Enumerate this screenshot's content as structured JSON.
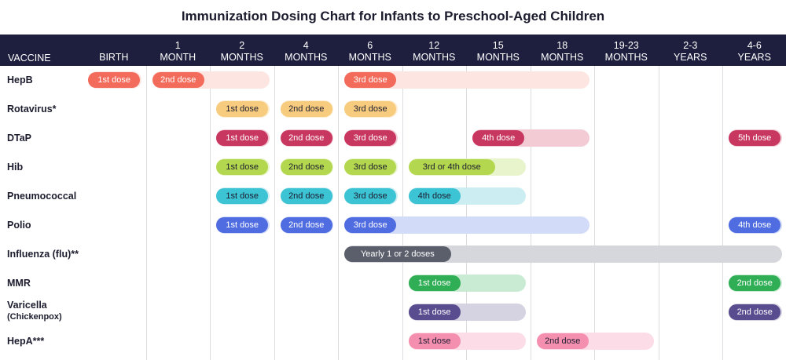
{
  "chart_data": {
    "type": "table",
    "title": "Immunization Dosing Chart for Infants to Preschool-Aged Children",
    "columns": [
      {
        "label": "BIRTH",
        "sub": ""
      },
      {
        "label": "1",
        "sub": "MONTH"
      },
      {
        "label": "2",
        "sub": "MONTHS"
      },
      {
        "label": "4",
        "sub": "MONTHS"
      },
      {
        "label": "6",
        "sub": "MONTHS"
      },
      {
        "label": "12",
        "sub": "MONTHS"
      },
      {
        "label": "15",
        "sub": "MONTHS"
      },
      {
        "label": "18",
        "sub": "MONTHS"
      },
      {
        "label": "19-23",
        "sub": "MONTHS"
      },
      {
        "label": "2-3",
        "sub": "YEARS"
      },
      {
        "label": "4-6",
        "sub": "YEARS"
      }
    ],
    "vaccine_header": "VACCINE",
    "vaccines": [
      {
        "name": "HepB",
        "sub": "",
        "color": "#f26b5b",
        "light": "#fde6e2",
        "doses": [
          {
            "label": "1st dose",
            "start": 0,
            "end": 0
          },
          {
            "label": "2nd dose",
            "start": 1,
            "end": 2
          },
          {
            "label": "3rd dose",
            "start": 4,
            "end": 7
          }
        ]
      },
      {
        "name": "Rotavirus*",
        "sub": "",
        "color": "#f7cc7f",
        "light": "#fdecd0",
        "doses": [
          {
            "label": "1st dose",
            "start": 2,
            "end": 2
          },
          {
            "label": "2nd dose",
            "start": 3,
            "end": 3
          },
          {
            "label": "3rd dose",
            "start": 4,
            "end": 4
          }
        ]
      },
      {
        "name": "DTaP",
        "sub": "",
        "color": "#c8375f",
        "light": "#f2cbd4",
        "doses": [
          {
            "label": "1st dose",
            "start": 2,
            "end": 2
          },
          {
            "label": "2nd dose",
            "start": 3,
            "end": 3
          },
          {
            "label": "3rd dose",
            "start": 4,
            "end": 4
          },
          {
            "label": "4th dose",
            "start": 6,
            "end": 7
          },
          {
            "label": "5th dose",
            "start": 10,
            "end": 10
          }
        ]
      },
      {
        "name": "Hib",
        "sub": "",
        "color": "#b3d84f",
        "light": "#e8f4cc",
        "doses": [
          {
            "label": "1st dose",
            "start": 2,
            "end": 2
          },
          {
            "label": "2nd dose",
            "start": 3,
            "end": 3
          },
          {
            "label": "3rd dose",
            "start": 4,
            "end": 4
          },
          {
            "label": "3rd or 4th dose",
            "start": 5,
            "end": 6
          }
        ]
      },
      {
        "name": "Pneumococcal",
        "sub": "",
        "color": "#3cc3d4",
        "light": "#ccedf2",
        "doses": [
          {
            "label": "1st dose",
            "start": 2,
            "end": 2
          },
          {
            "label": "2nd dose",
            "start": 3,
            "end": 3
          },
          {
            "label": "3rd dose",
            "start": 4,
            "end": 4
          },
          {
            "label": "4th dose",
            "start": 5,
            "end": 6
          }
        ]
      },
      {
        "name": "Polio",
        "sub": "",
        "color": "#4f6ce0",
        "light": "#d2dbf8",
        "doses": [
          {
            "label": "1st dose",
            "start": 2,
            "end": 2
          },
          {
            "label": "2nd dose",
            "start": 3,
            "end": 3
          },
          {
            "label": "3rd dose",
            "start": 4,
            "end": 7
          },
          {
            "label": "4th dose",
            "start": 10,
            "end": 10
          }
        ]
      },
      {
        "name": "Influenza (flu)**",
        "sub": "",
        "color": "#5b5e6b",
        "light": "#d6d7dc",
        "doses": [
          {
            "label": "Yearly 1 or 2 doses",
            "start": 4,
            "end": 10
          }
        ]
      },
      {
        "name": "MMR",
        "sub": "",
        "color": "#2fae55",
        "light": "#c9ebd3",
        "doses": [
          {
            "label": "1st dose",
            "start": 5,
            "end": 6
          },
          {
            "label": "2nd dose",
            "start": 10,
            "end": 10
          }
        ]
      },
      {
        "name": "Varicella",
        "sub": "(Chickenpox)",
        "color": "#5a4d8f",
        "light": "#d5d2e2",
        "doses": [
          {
            "label": "1st dose",
            "start": 5,
            "end": 6
          },
          {
            "label": "2nd dose",
            "start": 10,
            "end": 10
          }
        ]
      },
      {
        "name": "HepA***",
        "sub": "",
        "color": "#f58fb0",
        "light": "#fcdce6",
        "doses": [
          {
            "label": "1st dose",
            "start": 5,
            "end": 6
          },
          {
            "label": "2nd dose",
            "start": 7,
            "end": 8
          }
        ]
      }
    ]
  }
}
